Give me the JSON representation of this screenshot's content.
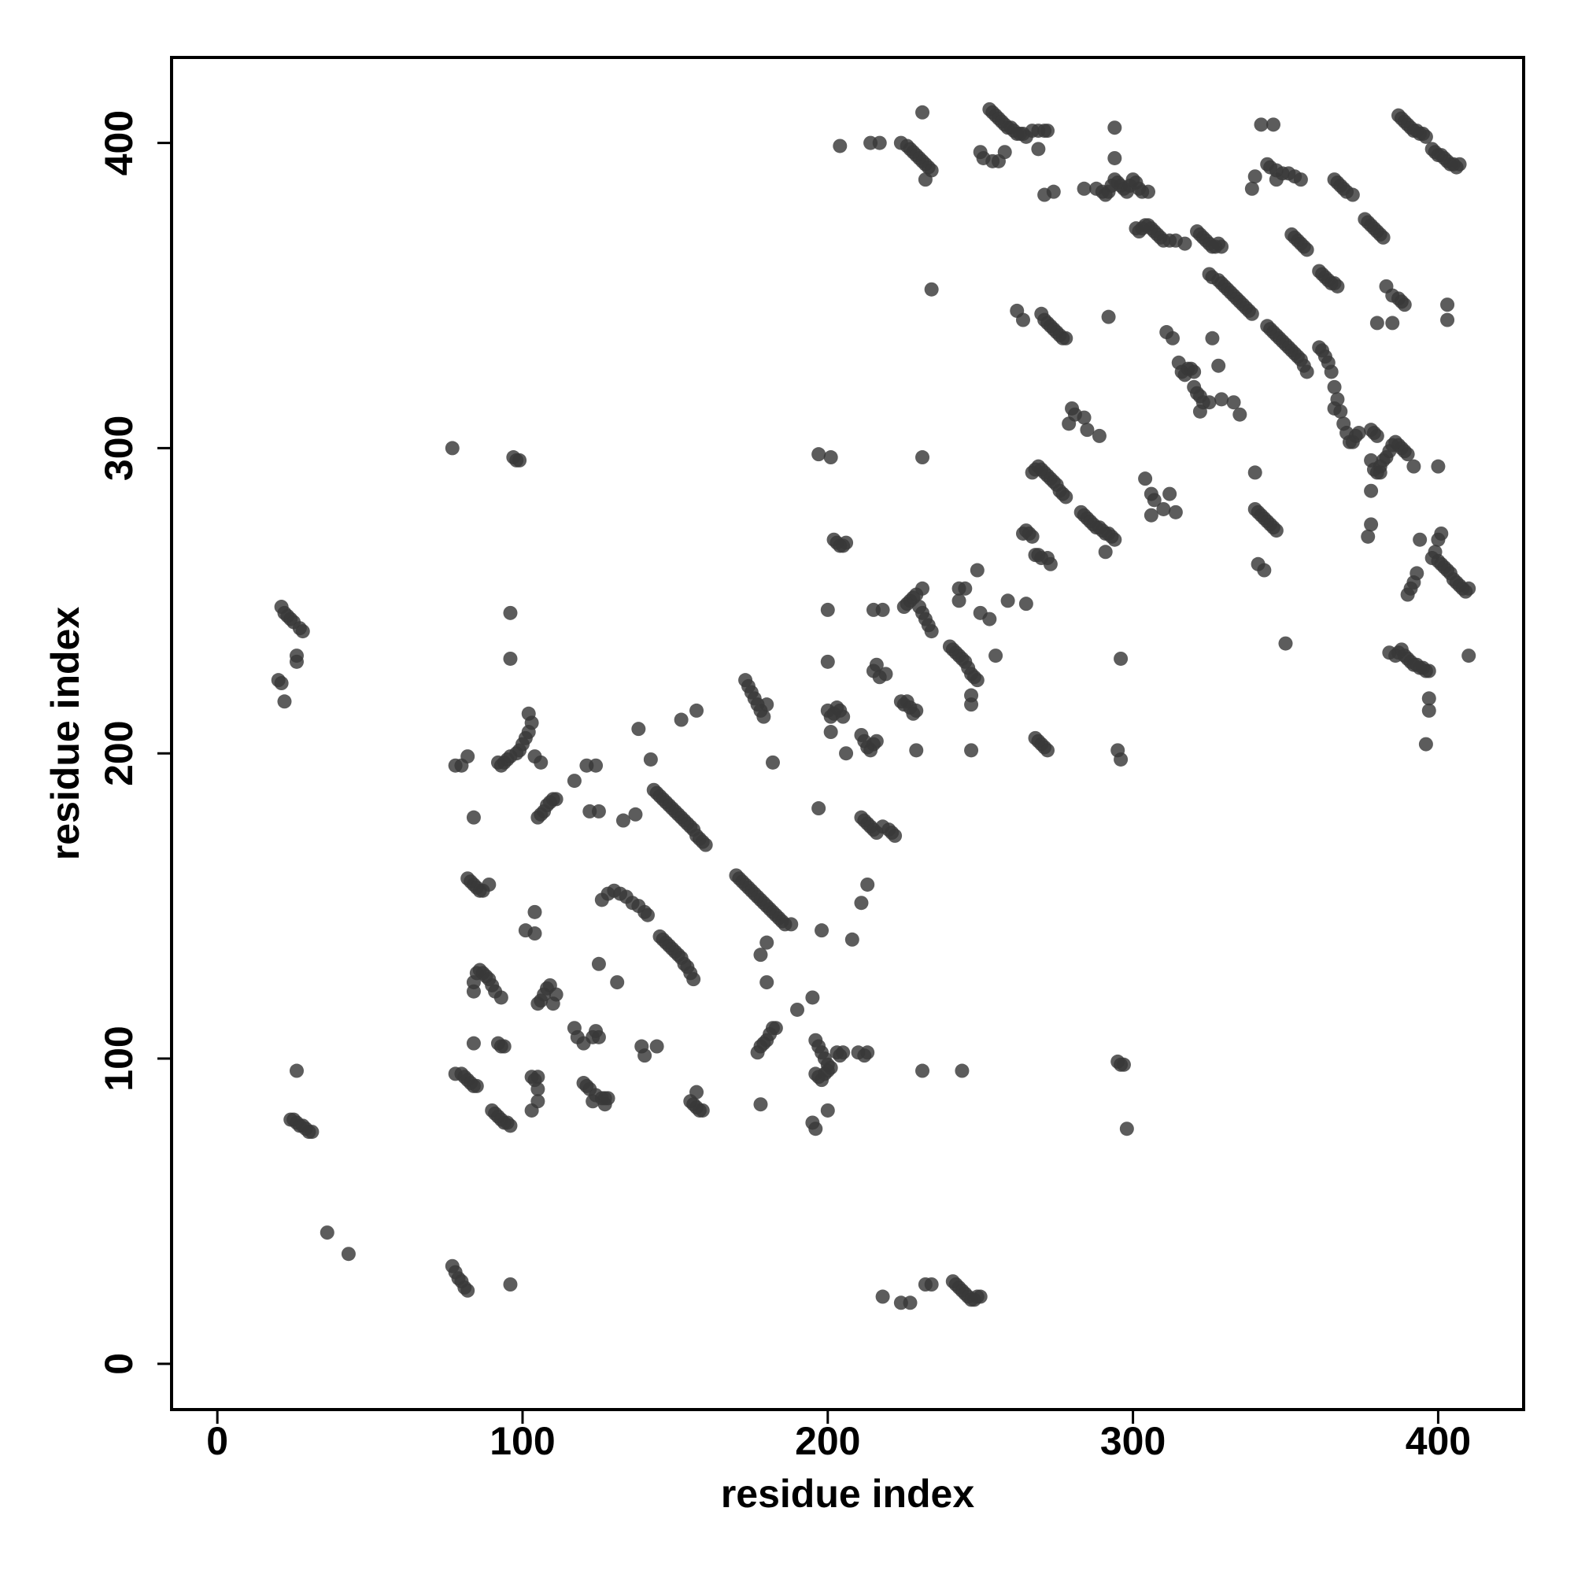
{
  "chart_data": {
    "type": "scatter",
    "xlabel": "residue index",
    "ylabel": "residue index",
    "xlim": [
      -15,
      428
    ],
    "ylim": [
      -15,
      428
    ],
    "xticks": [
      0,
      100,
      200,
      300,
      400
    ],
    "yticks": [
      0,
      100,
      200,
      300,
      400
    ],
    "grid": false,
    "color": "#383838",
    "alpha": 0.82,
    "x": [
      21,
      22,
      23,
      24,
      25,
      27,
      28,
      26,
      26,
      20,
      21,
      22,
      24,
      25,
      26,
      27,
      28,
      29,
      30,
      31,
      26,
      36,
      43,
      77,
      78,
      79,
      80,
      81,
      82,
      96,
      77,
      78,
      80,
      81,
      82,
      83,
      84,
      85,
      84,
      92,
      93,
      94,
      90,
      91,
      92,
      93,
      94,
      95,
      96,
      82,
      83,
      84,
      85,
      86,
      87,
      89,
      84,
      85,
      86,
      87,
      88,
      89,
      90,
      91,
      93,
      84,
      84,
      82,
      78,
      80,
      97,
      98,
      99,
      96,
      96,
      92,
      93,
      94,
      95,
      96,
      98,
      99,
      100,
      101,
      102,
      103,
      102,
      104,
      106,
      105,
      106,
      107,
      108,
      109,
      110,
      111,
      101,
      104,
      104,
      106,
      107,
      108,
      109,
      110,
      111,
      105,
      103,
      104,
      105,
      105,
      105,
      103,
      117,
      118,
      120,
      123,
      124,
      125,
      120,
      121,
      122,
      124,
      126,
      127,
      128,
      123,
      127,
      121,
      124,
      117,
      125,
      122,
      126,
      128,
      130,
      132,
      134,
      136,
      138,
      140,
      141,
      125,
      131,
      133,
      137,
      138,
      142,
      139,
      140,
      144,
      143,
      144,
      145,
      146,
      147,
      148,
      149,
      150,
      151,
      152,
      153,
      154,
      155,
      156,
      157,
      158,
      159,
      160,
      145,
      146,
      147,
      148,
      149,
      150,
      151,
      152,
      153,
      154,
      155,
      156,
      152,
      157,
      155,
      156,
      157,
      158,
      159,
      157,
      170,
      171,
      172,
      173,
      174,
      175,
      176,
      177,
      178,
      179,
      180,
      181,
      182,
      183,
      184,
      185,
      186,
      188,
      173,
      174,
      175,
      176,
      177,
      178,
      179,
      180,
      178,
      180,
      180,
      182,
      178,
      177,
      178,
      179,
      180,
      181,
      182,
      183,
      190,
      195,
      196,
      197,
      198,
      199,
      200,
      196,
      197,
      198,
      199,
      200,
      201,
      195,
      196,
      200,
      197,
      198,
      197,
      201,
      200,
      200,
      200,
      201,
      202,
      203,
      204,
      205,
      201,
      202,
      203,
      204,
      205,
      206,
      203,
      204,
      205,
      210,
      212,
      213,
      206,
      208,
      211,
      213,
      211,
      212,
      213,
      214,
      215,
      216,
      211,
      212,
      213,
      214,
      215,
      216,
      218,
      220,
      221,
      222,
      215,
      216,
      217,
      219,
      215,
      218,
      224,
      225,
      226,
      227,
      228,
      229,
      229,
      218,
      224,
      227,
      232,
      234,
      225,
      226,
      227,
      228,
      229,
      230,
      231,
      232,
      233,
      234,
      231,
      231,
      231,
      244,
      240,
      241,
      242,
      243,
      244,
      245,
      246,
      247,
      248,
      249,
      241,
      242,
      243,
      244,
      245,
      246,
      247,
      248,
      249,
      250,
      243,
      245,
      243,
      247,
      247,
      247,
      249,
      253,
      255,
      250,
      259,
      224,
      226,
      227,
      228,
      229,
      230,
      231,
      232,
      233,
      234,
      232,
      214,
      217,
      204,
      231,
      234,
      250,
      251,
      254,
      256,
      253,
      254,
      255,
      256,
      257,
      258,
      259,
      260,
      261,
      262,
      263,
      264,
      265,
      267,
      269,
      271,
      272,
      258,
      269,
      271,
      274,
      262,
      264,
      270,
      271,
      272,
      273,
      274,
      275,
      276,
      277,
      278,
      264,
      265,
      266,
      267,
      268,
      269,
      270,
      272,
      273,
      267,
      268,
      269,
      270,
      271,
      272,
      273,
      274,
      275,
      276,
      277,
      278,
      268,
      269,
      270,
      271,
      272,
      265,
      279,
      280,
      281,
      284,
      285,
      289,
      283,
      284,
      285,
      286,
      287,
      288,
      289,
      290,
      291,
      292,
      293,
      294,
      291,
      284,
      288,
      290,
      291,
      292,
      293,
      294,
      295,
      296,
      297,
      298,
      299,
      300,
      301,
      302,
      303,
      305,
      294,
      294,
      292,
      301,
      302,
      303,
      304,
      305,
      306,
      307,
      308,
      309,
      310,
      312,
      314,
      317,
      295,
      296,
      297,
      298,
      296,
      295,
      296,
      304,
      306,
      307,
      306,
      310,
      312,
      314,
      311,
      313,
      315,
      316,
      317,
      318,
      319,
      320,
      320,
      321,
      322,
      323,
      325,
      322,
      326,
      321,
      322,
      323,
      324,
      325,
      326,
      327,
      328,
      329,
      325,
      326,
      328,
      329,
      330,
      331,
      332,
      333,
      334,
      335,
      336,
      337,
      338,
      339,
      328,
      333,
      335,
      329,
      340,
      341,
      342,
      343,
      344,
      345,
      346,
      347,
      341,
      343,
      340,
      339,
      340,
      342,
      346,
      344,
      345,
      347,
      349,
      351,
      353,
      355,
      347,
      344,
      345,
      346,
      347,
      348,
      349,
      350,
      351,
      352,
      353,
      354,
      355,
      356,
      357,
      350,
      352,
      353,
      354,
      355,
      356,
      357,
      361,
      362,
      363,
      364,
      365,
      366,
      367,
      361,
      362,
      363,
      364,
      365,
      366,
      367,
      368,
      369,
      370,
      371,
      372,
      373,
      374,
      366,
      366,
      367,
      368,
      369,
      370,
      372,
      376,
      377,
      378,
      379,
      380,
      381,
      382,
      378,
      379,
      380,
      381,
      382,
      383,
      384,
      385,
      386,
      387,
      388,
      389,
      390,
      378,
      379,
      380,
      377,
      378,
      381,
      378,
      380,
      385,
      383,
      385,
      387,
      388,
      389,
      384,
      386,
      387,
      388,
      389,
      390,
      391,
      392,
      393,
      394,
      395,
      396,
      397,
      387,
      388,
      389,
      390,
      391,
      392,
      393,
      394,
      395,
      396,
      390,
      391,
      392,
      393,
      394,
      392,
      397,
      397,
      396,
      398,
      399,
      400,
      401,
      402,
      403,
      404,
      405,
      406,
      407,
      398,
      399,
      400,
      401,
      400,
      400,
      401,
      402,
      403,
      404,
      405,
      406,
      407,
      408,
      409,
      410,
      403,
      403,
      410
    ],
    "values": [
      248,
      246,
      245,
      244,
      243,
      241,
      240,
      232,
      230,
      224,
      223,
      217,
      80,
      80,
      79,
      78,
      78,
      77,
      76,
      76,
      96,
      43,
      36,
      32,
      30,
      28,
      27,
      25,
      24,
      26,
      300,
      95,
      95,
      94,
      93,
      92,
      91,
      91,
      105,
      105,
      104,
      104,
      83,
      82,
      81,
      80,
      79,
      79,
      78,
      159,
      158,
      157,
      156,
      155,
      155,
      157,
      125,
      128,
      129,
      128,
      127,
      126,
      124,
      122,
      120,
      122,
      179,
      199,
      196,
      196,
      297,
      296,
      296,
      246,
      231,
      197,
      196,
      197,
      198,
      199,
      200,
      201,
      203,
      205,
      207,
      210,
      213,
      199,
      197,
      179,
      180,
      181,
      183,
      184,
      185,
      185,
      142,
      141,
      148,
      119,
      121,
      123,
      124,
      118,
      121,
      118,
      94,
      93,
      94,
      90,
      86,
      83,
      110,
      107,
      105,
      107,
      109,
      107,
      92,
      91,
      90,
      88,
      87,
      87,
      87,
      86,
      85,
      196,
      196,
      191,
      181,
      181,
      152,
      154,
      155,
      154,
      153,
      151,
      150,
      148,
      147,
      131,
      125,
      178,
      180,
      208,
      198,
      104,
      101,
      104,
      188,
      187,
      186,
      185,
      184,
      183,
      182,
      181,
      180,
      179,
      178,
      177,
      176,
      175,
      173,
      172,
      171,
      170,
      140,
      139,
      138,
      137,
      136,
      135,
      134,
      133,
      131,
      130,
      128,
      126,
      211,
      214,
      86,
      85,
      84,
      83,
      83,
      89,
      160,
      159,
      158,
      157,
      156,
      155,
      154,
      153,
      152,
      151,
      150,
      149,
      148,
      147,
      146,
      145,
      144,
      144,
      224,
      222,
      220,
      218,
      216,
      214,
      212,
      216,
      134,
      138,
      125,
      197,
      85,
      102,
      104,
      105,
      106,
      108,
      110,
      110,
      116,
      120,
      106,
      104,
      102,
      100,
      98,
      95,
      94,
      93,
      95,
      96,
      97,
      79,
      77,
      83,
      182,
      142,
      298,
      297,
      247,
      230,
      214,
      212,
      213,
      215,
      214,
      212,
      207,
      270,
      269,
      268,
      268,
      269,
      102,
      101,
      102,
      102,
      101,
      102,
      200,
      139,
      151,
      157,
      206,
      204,
      202,
      201,
      203,
      204,
      179,
      178,
      177,
      176,
      175,
      174,
      176,
      175,
      174,
      173,
      227,
      229,
      225,
      226,
      247,
      247,
      217,
      216,
      217,
      215,
      213,
      214,
      201,
      22,
      20,
      20,
      26,
      26,
      248,
      249,
      250,
      251,
      252,
      248,
      246,
      244,
      242,
      240,
      254,
      297,
      96,
      96,
      235,
      234,
      233,
      232,
      231,
      230,
      228,
      226,
      225,
      224,
      27,
      26,
      25,
      24,
      23,
      22,
      21,
      21,
      22,
      22,
      254,
      254,
      250,
      216,
      219,
      201,
      260,
      244,
      232,
      246,
      250,
      400,
      399,
      398,
      397,
      396,
      395,
      394,
      393,
      392,
      391,
      388,
      400,
      400,
      399,
      410,
      352,
      397,
      395,
      394,
      394,
      411,
      410,
      409,
      408,
      407,
      406,
      405,
      405,
      404,
      403,
      403,
      403,
      402,
      404,
      404,
      404,
      404,
      397,
      398,
      383,
      384,
      345,
      342,
      344,
      342,
      341,
      340,
      339,
      338,
      337,
      336,
      336,
      272,
      273,
      272,
      271,
      265,
      265,
      264,
      264,
      262,
      292,
      293,
      294,
      293,
      292,
      291,
      290,
      289,
      288,
      286,
      285,
      284,
      205,
      204,
      203,
      202,
      201,
      249,
      308,
      313,
      311,
      310,
      306,
      304,
      279,
      278,
      277,
      276,
      275,
      274,
      274,
      273,
      272,
      272,
      271,
      270,
      266,
      385,
      385,
      384,
      383,
      384,
      386,
      388,
      387,
      386,
      385,
      384,
      386,
      388,
      387,
      385,
      384,
      384,
      405,
      395,
      343,
      372,
      371,
      372,
      373,
      373,
      372,
      371,
      370,
      369,
      368,
      368,
      368,
      367,
      99,
      98,
      98,
      77,
      231,
      201,
      198,
      290,
      285,
      283,
      278,
      280,
      285,
      279,
      338,
      336,
      328,
      325,
      324,
      326,
      326,
      325,
      320,
      318,
      317,
      315,
      315,
      312,
      336,
      371,
      370,
      369,
      368,
      367,
      366,
      366,
      367,
      366,
      357,
      356,
      355,
      354,
      353,
      352,
      351,
      350,
      349,
      348,
      347,
      346,
      345,
      344,
      327,
      315,
      311,
      316,
      280,
      279,
      278,
      277,
      276,
      275,
      274,
      273,
      262,
      260,
      292,
      385,
      389,
      406,
      406,
      393,
      392,
      391,
      390,
      390,
      389,
      388,
      388,
      340,
      339,
      338,
      337,
      336,
      335,
      334,
      333,
      332,
      331,
      330,
      329,
      327,
      325,
      236,
      370,
      369,
      368,
      367,
      366,
      365,
      358,
      357,
      356,
      355,
      354,
      354,
      353,
      333,
      332,
      330,
      328,
      325,
      320,
      316,
      312,
      308,
      305,
      302,
      302,
      304,
      305,
      313,
      388,
      387,
      386,
      385,
      384,
      383,
      375,
      374,
      373,
      372,
      371,
      370,
      369,
      296,
      293,
      292,
      294,
      296,
      297,
      299,
      301,
      302,
      301,
      300,
      299,
      298,
      306,
      305,
      304,
      271,
      275,
      292,
      286,
      341,
      341,
      353,
      350,
      349,
      348,
      347,
      233,
      232,
      233,
      234,
      232,
      231,
      230,
      229,
      229,
      228,
      228,
      227,
      227,
      409,
      408,
      407,
      406,
      405,
      404,
      404,
      403,
      403,
      402,
      252,
      254,
      256,
      259,
      270,
      294,
      218,
      214,
      203,
      398,
      397,
      396,
      396,
      395,
      394,
      393,
      393,
      392,
      393,
      264,
      266,
      270,
      272,
      294,
      263,
      262,
      261,
      260,
      259,
      257,
      256,
      255,
      254,
      253,
      254,
      347,
      342,
      232
    ]
  }
}
